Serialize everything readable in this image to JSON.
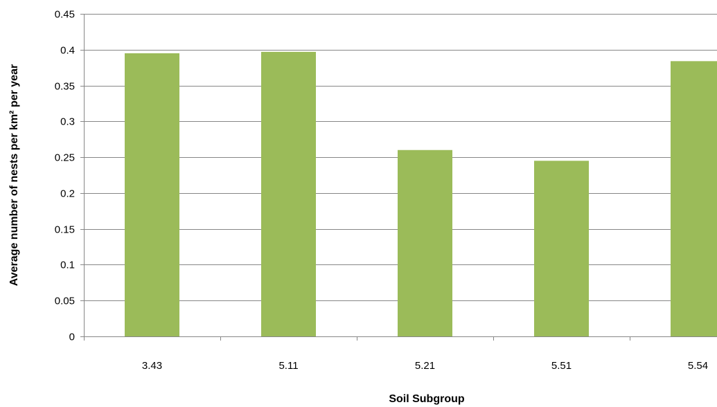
{
  "chart_data": {
    "type": "bar",
    "xlabel": "Soil Subgroup",
    "ylabel": "Average number of nests per km² per year",
    "categories": [
      "3.43",
      "5.11",
      "5.21",
      "5.51",
      "5.54"
    ],
    "values": [
      0.395,
      0.397,
      0.26,
      0.245,
      0.384
    ],
    "ylim": [
      0,
      0.45
    ],
    "yticks": [
      "0",
      "0.05",
      "0.1",
      "0.15",
      "0.2",
      "0.25",
      "0.3",
      "0.35",
      "0.4",
      "0.45"
    ],
    "grid": true,
    "legend": "none",
    "bar_color": "#9BBB59",
    "grid_color": "#868686",
    "axis_color": "#868686"
  }
}
